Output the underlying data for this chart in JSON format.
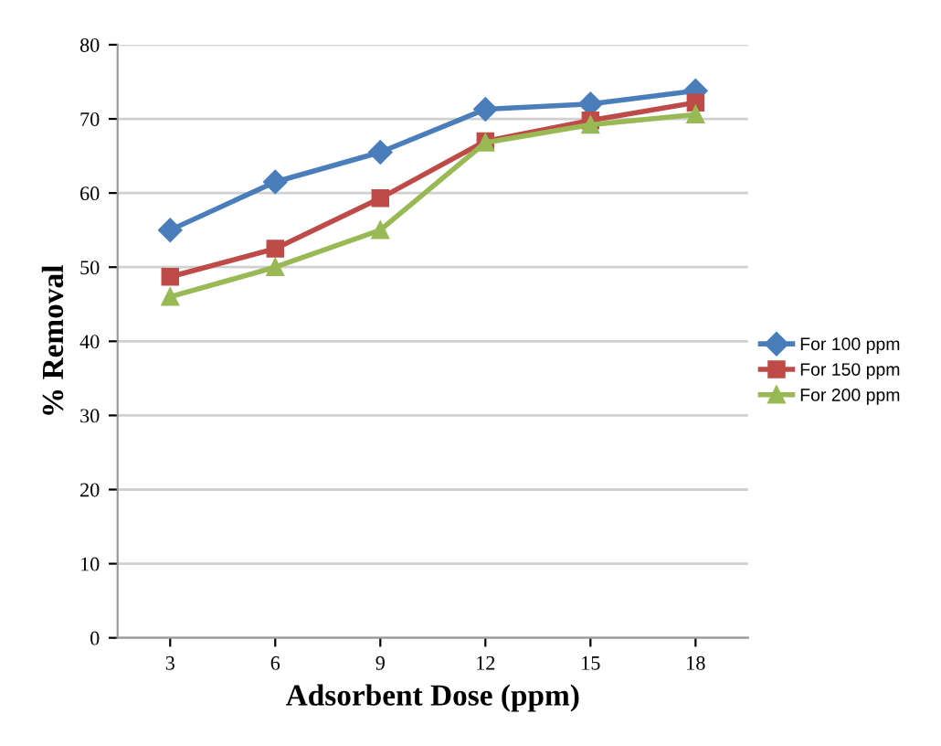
{
  "chart_data": {
    "type": "line",
    "xlabel": "Adsorbent Dose (ppm)",
    "ylabel": "% Removal",
    "categories": [
      "3",
      "6",
      "9",
      "12",
      "15",
      "18"
    ],
    "series": [
      {
        "name": "For 100 ppm",
        "color": "#4a7ebb",
        "marker": "diamond",
        "values": [
          55,
          61.5,
          65.5,
          71.3,
          72,
          73.8
        ]
      },
      {
        "name": "For 150 ppm",
        "color": "#be4b48",
        "marker": "square",
        "values": [
          48.7,
          52.5,
          59.3,
          67,
          69.8,
          72.2
        ]
      },
      {
        "name": "For 200 ppm",
        "color": "#98b954",
        "marker": "triangle",
        "values": [
          46,
          50,
          55,
          66.8,
          69.2,
          70.6
        ]
      }
    ],
    "ylim": [
      0,
      80
    ],
    "yticks": [
      0,
      10,
      20,
      30,
      40,
      50,
      60,
      70,
      80
    ],
    "grid": "y",
    "legend": "right"
  }
}
